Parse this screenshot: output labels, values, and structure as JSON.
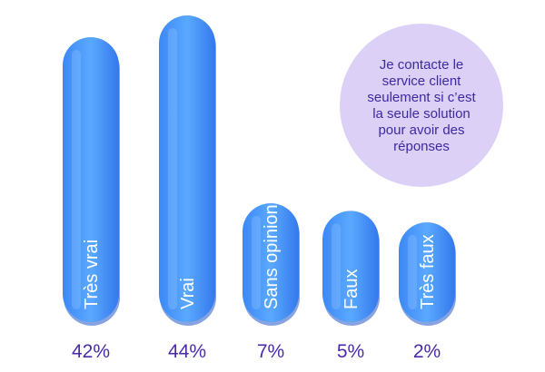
{
  "chart_data": {
    "type": "bar",
    "categories": [
      "Très vrai",
      "Vrai",
      "Sans opinion",
      "Faux",
      "Très faux"
    ],
    "values": [
      42,
      44,
      7,
      5,
      2
    ],
    "value_labels": [
      "42%",
      "44%",
      "7%",
      "5%",
      "2%"
    ],
    "title": "",
    "xlabel": "",
    "ylabel": "",
    "annotation": "Je contacte le service client seulement si c’est la seule solution pour avoir des réponses",
    "colors": {
      "bar_top": "#5aa9ff",
      "bar_bottom": "#2d6fe6",
      "bar_shadow": "#2458c7",
      "value_text": "#4b2aa8",
      "bubble_fill": "#ddd0f7",
      "bubble_text": "#3b2aa0"
    },
    "grid": false
  }
}
